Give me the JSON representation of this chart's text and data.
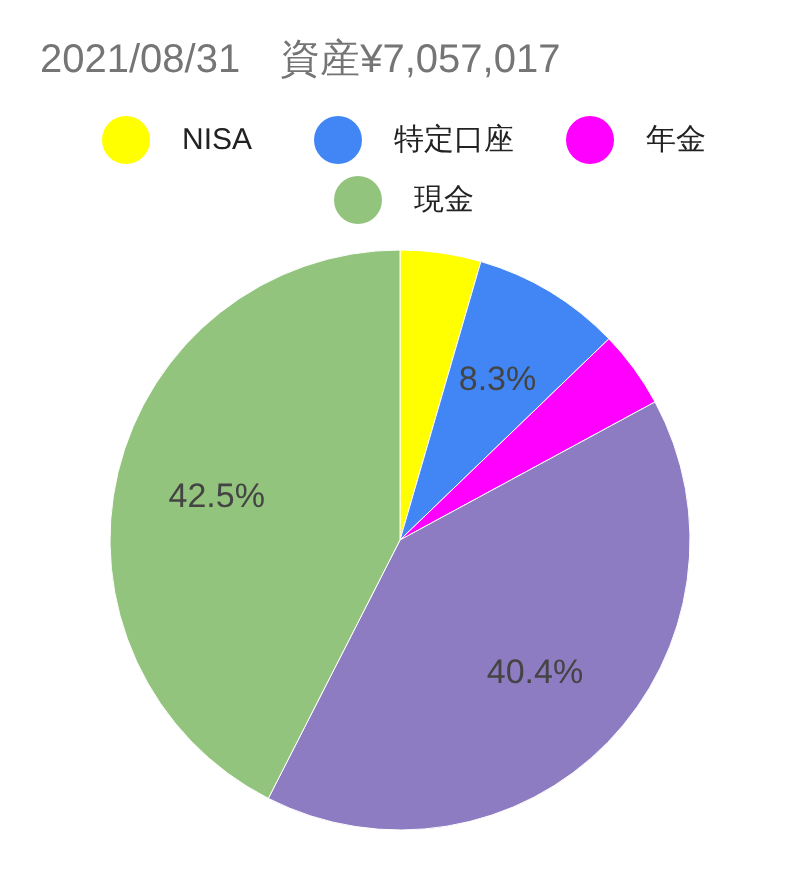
{
  "chart_data": {
    "type": "pie",
    "title": "2021/08/31　資産¥7,057,017",
    "categories": [
      "NISA",
      "特定口座",
      "年金",
      null,
      "現金"
    ],
    "values": [
      4.5,
      8.3,
      4.3,
      40.4,
      42.5
    ],
    "colors": [
      "#ffff00",
      "#4285f4",
      "#ff00ff",
      "#8e7cc3",
      "#93c47d"
    ],
    "value_labels": [
      null,
      "8.3%",
      null,
      "40.4%",
      "42.5%"
    ],
    "legend": "top"
  }
}
